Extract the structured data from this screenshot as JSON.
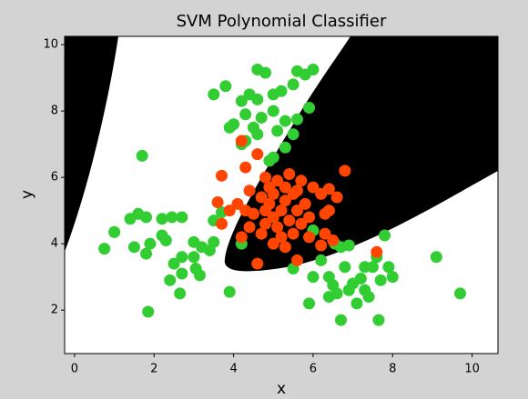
{
  "chart_data": {
    "type": "scatter",
    "title": "SVM Polynomial Classifier",
    "x_label": "x",
    "y_label": "y",
    "xlim": [
      -0.25,
      10.65
    ],
    "ylim": [
      0.69,
      10.25
    ],
    "xticks": [
      0,
      2,
      4,
      6,
      8,
      10
    ],
    "yticks": [
      2,
      4,
      6,
      8,
      10
    ],
    "series": [
      {
        "color": "#32cd32",
        "x": [
          4.6,
          4.8,
          5.6,
          6.0,
          5.8,
          3.5,
          3.8,
          4.2,
          4.4,
          4.6,
          5.0,
          5.2,
          5.5,
          4.3,
          4.7,
          5.0,
          5.3,
          5.6,
          5.9,
          4.0,
          3.9,
          4.5,
          5.1,
          5.5,
          4.2,
          4.6,
          5.0,
          5.3,
          4.3,
          4.9,
          1.0,
          1.4,
          1.6,
          1.8,
          1.5,
          1.8,
          1.9,
          2.2,
          2.3,
          2.2,
          2.45,
          2.7,
          2.5,
          2.7,
          2.7,
          2.4,
          2.65,
          3.0,
          3.0,
          3.2,
          3.4,
          3.5,
          3.05,
          3.15,
          3.5,
          3.7,
          0.75,
          1.7,
          1.85,
          3.9,
          4.2,
          5.5,
          6.0,
          6.2,
          6.4,
          6.5,
          6.6,
          6.7,
          6.8,
          6.9,
          7.0,
          7.2,
          7.3,
          7.1,
          6.4,
          6.7,
          7.5,
          7.6,
          7.7,
          7.9,
          8.0,
          7.65,
          7.8,
          7.3,
          5.9,
          6.55,
          6.0,
          9.1,
          9.7,
          7.4,
          6.9
        ],
        "y": [
          9.25,
          9.15,
          9.2,
          9.25,
          9.1,
          8.5,
          8.75,
          8.3,
          8.5,
          8.35,
          8.5,
          8.6,
          8.8,
          7.9,
          7.8,
          8.0,
          7.7,
          7.75,
          8.1,
          7.6,
          7.5,
          7.5,
          7.4,
          7.3,
          7.0,
          7.3,
          6.6,
          6.9,
          7.1,
          6.5,
          4.35,
          4.75,
          4.9,
          4.8,
          3.9,
          3.7,
          4.0,
          4.25,
          4.1,
          4.75,
          4.8,
          4.8,
          3.4,
          3.6,
          3.1,
          2.9,
          2.5,
          4.05,
          3.6,
          3.9,
          3.8,
          4.05,
          3.25,
          3.05,
          4.7,
          4.95,
          3.85,
          6.65,
          1.95,
          2.55,
          4.0,
          3.25,
          3.0,
          3.5,
          3.0,
          2.75,
          2.5,
          3.9,
          3.3,
          3.95,
          2.8,
          2.95,
          2.6,
          2.2,
          2.4,
          1.7,
          3.3,
          3.6,
          2.9,
          3.3,
          3.0,
          1.7,
          4.25,
          3.3,
          2.2,
          4.0,
          4.4,
          3.6,
          2.5,
          2.4,
          2.6
        ]
      },
      {
        "color": "#ff4500",
        "x": [
          4.2,
          3.7,
          4.3,
          4.6,
          4.8,
          5.1,
          5.4,
          5.7,
          6.0,
          6.2,
          6.4,
          6.8,
          6.6,
          6.4,
          6.3,
          6.3,
          6.5,
          6.2,
          5.9,
          5.6,
          5.3,
          5.0,
          4.7,
          4.4,
          4.2,
          4.6,
          4.1,
          3.9,
          3.6,
          3.7,
          4.4,
          4.7,
          4.9,
          5.0,
          5.2,
          5.3,
          5.4,
          5.5,
          5.6,
          5.7,
          5.1,
          4.9,
          5.3,
          5.8,
          4.5,
          4.8,
          5.2,
          5.9,
          5.5,
          7.6,
          4.3,
          5.0,
          5.6,
          4.8
        ],
        "y": [
          7.1,
          6.05,
          6.3,
          6.7,
          6.0,
          5.9,
          6.1,
          5.9,
          5.7,
          5.5,
          5.65,
          6.2,
          5.4,
          5.0,
          4.9,
          4.3,
          4.1,
          3.95,
          4.2,
          3.5,
          3.9,
          4.0,
          4.3,
          4.5,
          4.2,
          3.4,
          5.2,
          5.0,
          5.25,
          4.6,
          5.6,
          5.4,
          5.2,
          4.8,
          5.0,
          5.3,
          4.7,
          5.5,
          5.0,
          4.6,
          4.5,
          5.7,
          5.7,
          5.2,
          4.9,
          4.6,
          4.2,
          4.8,
          4.3,
          3.75,
          5.0,
          5.5,
          5.6,
          5.0
        ]
      }
    ]
  }
}
